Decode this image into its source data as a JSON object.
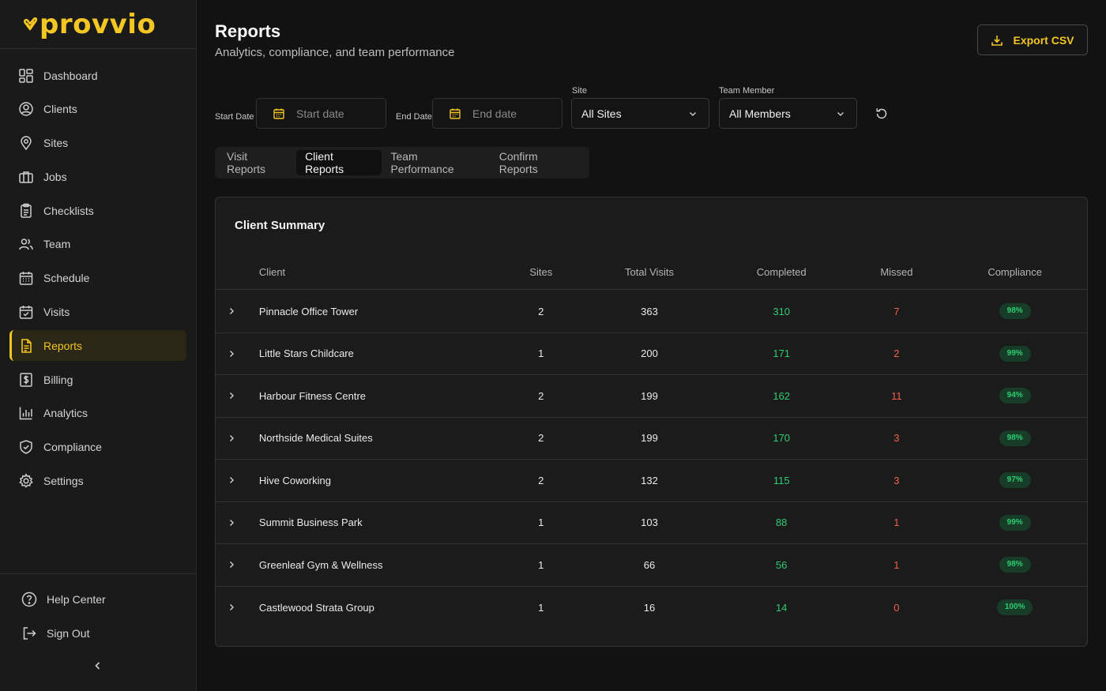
{
  "brand": {
    "name": "provvio",
    "accent": "#f3c623"
  },
  "sidebar": {
    "items": [
      {
        "label": "Dashboard",
        "icon": "dashboard-icon"
      },
      {
        "label": "Clients",
        "icon": "user-circle-icon"
      },
      {
        "label": "Sites",
        "icon": "map-pin-icon"
      },
      {
        "label": "Jobs",
        "icon": "briefcase-icon"
      },
      {
        "label": "Checklists",
        "icon": "clipboard-icon"
      },
      {
        "label": "Team",
        "icon": "users-icon"
      },
      {
        "label": "Schedule",
        "icon": "calendar-icon"
      },
      {
        "label": "Visits",
        "icon": "calendar-check-icon"
      },
      {
        "label": "Reports",
        "icon": "file-text-icon",
        "active": true
      },
      {
        "label": "Billing",
        "icon": "dollar-icon"
      },
      {
        "label": "Analytics",
        "icon": "bar-chart-icon"
      },
      {
        "label": "Compliance",
        "icon": "shield-check-icon"
      },
      {
        "label": "Settings",
        "icon": "gear-icon"
      }
    ],
    "bottom": {
      "help": "Help Center",
      "signout": "Sign Out"
    }
  },
  "header": {
    "title": "Reports",
    "subtitle": "Analytics, compliance, and team performance",
    "export_label": "Export CSV"
  },
  "filters": {
    "start_label": "Start Date",
    "start_placeholder": "Start date",
    "end_label": "End Date",
    "end_placeholder": "End date",
    "site_label": "Site",
    "site_value": "All Sites",
    "member_label": "Team Member",
    "member_value": "All Members"
  },
  "tabs": [
    {
      "label": "Visit Reports"
    },
    {
      "label": "Client Reports",
      "active": true
    },
    {
      "label": "Team Performance"
    },
    {
      "label": "Confirm Reports"
    }
  ],
  "summary": {
    "title": "Client Summary",
    "columns": [
      "Client",
      "Sites",
      "Total Visits",
      "Completed",
      "Missed",
      "Compliance"
    ],
    "rows": [
      {
        "client": "Pinnacle Office Tower",
        "sites": "2",
        "total": "363",
        "completed": "310",
        "missed": "7",
        "compliance": "98%"
      },
      {
        "client": "Little Stars Childcare",
        "sites": "1",
        "total": "200",
        "completed": "171",
        "missed": "2",
        "compliance": "99%"
      },
      {
        "client": "Harbour Fitness Centre",
        "sites": "2",
        "total": "199",
        "completed": "162",
        "missed": "11",
        "compliance": "94%"
      },
      {
        "client": "Northside Medical Suites",
        "sites": "2",
        "total": "199",
        "completed": "170",
        "missed": "3",
        "compliance": "98%"
      },
      {
        "client": "Hive Coworking",
        "sites": "2",
        "total": "132",
        "completed": "115",
        "missed": "3",
        "compliance": "97%"
      },
      {
        "client": "Summit Business Park",
        "sites": "1",
        "total": "103",
        "completed": "88",
        "missed": "1",
        "compliance": "99%"
      },
      {
        "client": "Greenleaf Gym & Wellness",
        "sites": "1",
        "total": "66",
        "completed": "56",
        "missed": "1",
        "compliance": "98%"
      },
      {
        "client": "Castlewood Strata Group",
        "sites": "1",
        "total": "16",
        "completed": "14",
        "missed": "0",
        "compliance": "100%"
      }
    ]
  },
  "colors": {
    "completed": "#2ecc71",
    "missed": "#f2604a",
    "badge_bg": "#173d29"
  }
}
